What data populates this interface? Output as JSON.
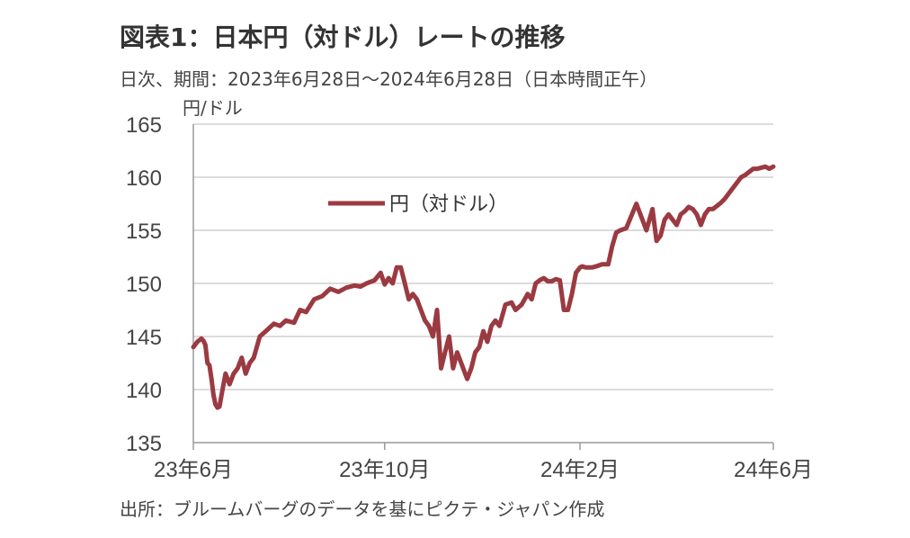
{
  "title": "図表1：日本円（対ドル）レートの推移",
  "subtitle": "日次、期間：2023年6月28日～2024年6月28日（日本時間正午）",
  "source": "出所：ブルームバーグのデータを基にピクテ・ジャパン作成",
  "chart_data": {
    "type": "line",
    "title": "図表1：日本円（対ドル）レートの推移",
    "ylabel": "円/ドル",
    "xlabel": "",
    "ylim": [
      135,
      165
    ],
    "yticks": [
      165,
      160,
      155,
      150,
      145,
      140,
      135
    ],
    "xtick_labels": [
      {
        "label": "23年6月",
        "x": 0
      },
      {
        "label": "23年10月",
        "x": 95
      },
      {
        "label": "24年2月",
        "x": 192
      },
      {
        "label": "24年6月",
        "x": 288
      }
    ],
    "x_unit": "business days since 2023-06-28",
    "grid": true,
    "legend_position": "upper-left",
    "colors": {
      "series": "#9b3a41",
      "grid": "#c8c8c8",
      "axis": "#9a9a9a"
    },
    "series": [
      {
        "name": "円（対ドル）",
        "x": [
          0,
          2,
          4,
          5,
          6,
          7,
          8,
          9,
          10,
          11,
          12,
          13,
          14,
          15,
          16,
          18,
          20,
          22,
          24,
          26,
          28,
          30,
          33,
          36,
          40,
          43,
          46,
          50,
          53,
          56,
          60,
          64,
          68,
          72,
          76,
          80,
          83,
          86,
          90,
          93,
          95,
          97,
          99,
          101,
          103,
          105,
          107,
          109,
          111,
          113,
          115,
          117,
          119,
          121,
          123,
          125,
          127,
          129,
          131,
          133,
          135,
          136,
          138,
          140,
          142,
          144,
          146,
          148,
          150,
          152,
          155,
          158,
          160,
          163,
          166,
          168,
          170,
          172,
          174,
          176,
          178,
          180,
          182,
          184,
          186,
          188,
          190,
          192,
          193,
          195,
          198,
          200,
          203,
          206,
          208,
          210,
          212,
          215,
          220,
          225,
          228,
          230,
          232,
          234,
          236,
          238,
          240,
          242,
          244,
          246,
          248,
          250,
          252,
          254,
          256,
          258,
          260,
          262,
          264,
          266,
          268,
          270,
          272,
          274,
          276,
          278,
          280,
          282,
          284,
          286,
          288
        ],
        "values": [
          144.0,
          144.5,
          144.8,
          144.6,
          144.2,
          142.5,
          142.3,
          141.0,
          139.5,
          138.6,
          138.3,
          138.4,
          139.5,
          140.5,
          141.5,
          140.5,
          141.5,
          142.0,
          143.0,
          141.5,
          142.5,
          143.0,
          145.0,
          145.5,
          146.2,
          146.0,
          146.5,
          146.3,
          147.5,
          147.3,
          148.5,
          148.8,
          149.5,
          149.2,
          149.6,
          149.8,
          149.7,
          150.0,
          150.3,
          151.0,
          149.9,
          150.5,
          150.0,
          151.5,
          151.5,
          150.0,
          148.5,
          149.0,
          148.5,
          147.5,
          146.5,
          146.0,
          145.0,
          147.5,
          142.0,
          143.5,
          145.0,
          142.0,
          143.5,
          142.5,
          141.5,
          141.0,
          142.0,
          143.5,
          144.0,
          145.5,
          144.5,
          146.0,
          146.5,
          146.0,
          148.0,
          148.2,
          147.5,
          148.0,
          149.0,
          148.5,
          150.0,
          150.3,
          150.5,
          150.2,
          150.2,
          150.4,
          150.3,
          147.5,
          147.5,
          149.0,
          151.0,
          151.5,
          151.6,
          151.5,
          151.5,
          151.6,
          151.8,
          151.8,
          153.5,
          154.8,
          155.0,
          155.2,
          157.5,
          155.0,
          157.0,
          154.0,
          154.5,
          156.0,
          156.5,
          156.0,
          155.5,
          156.5,
          156.8,
          157.2,
          157.0,
          156.5,
          155.5,
          156.5,
          157.0,
          157.0,
          157.3,
          157.6,
          158.0,
          158.5,
          159.0,
          159.5,
          160.0,
          160.2,
          160.5,
          160.8,
          160.8,
          160.9,
          161.0,
          160.8,
          161.0
        ]
      }
    ],
    "legend": [
      "円（対ドル）"
    ]
  }
}
